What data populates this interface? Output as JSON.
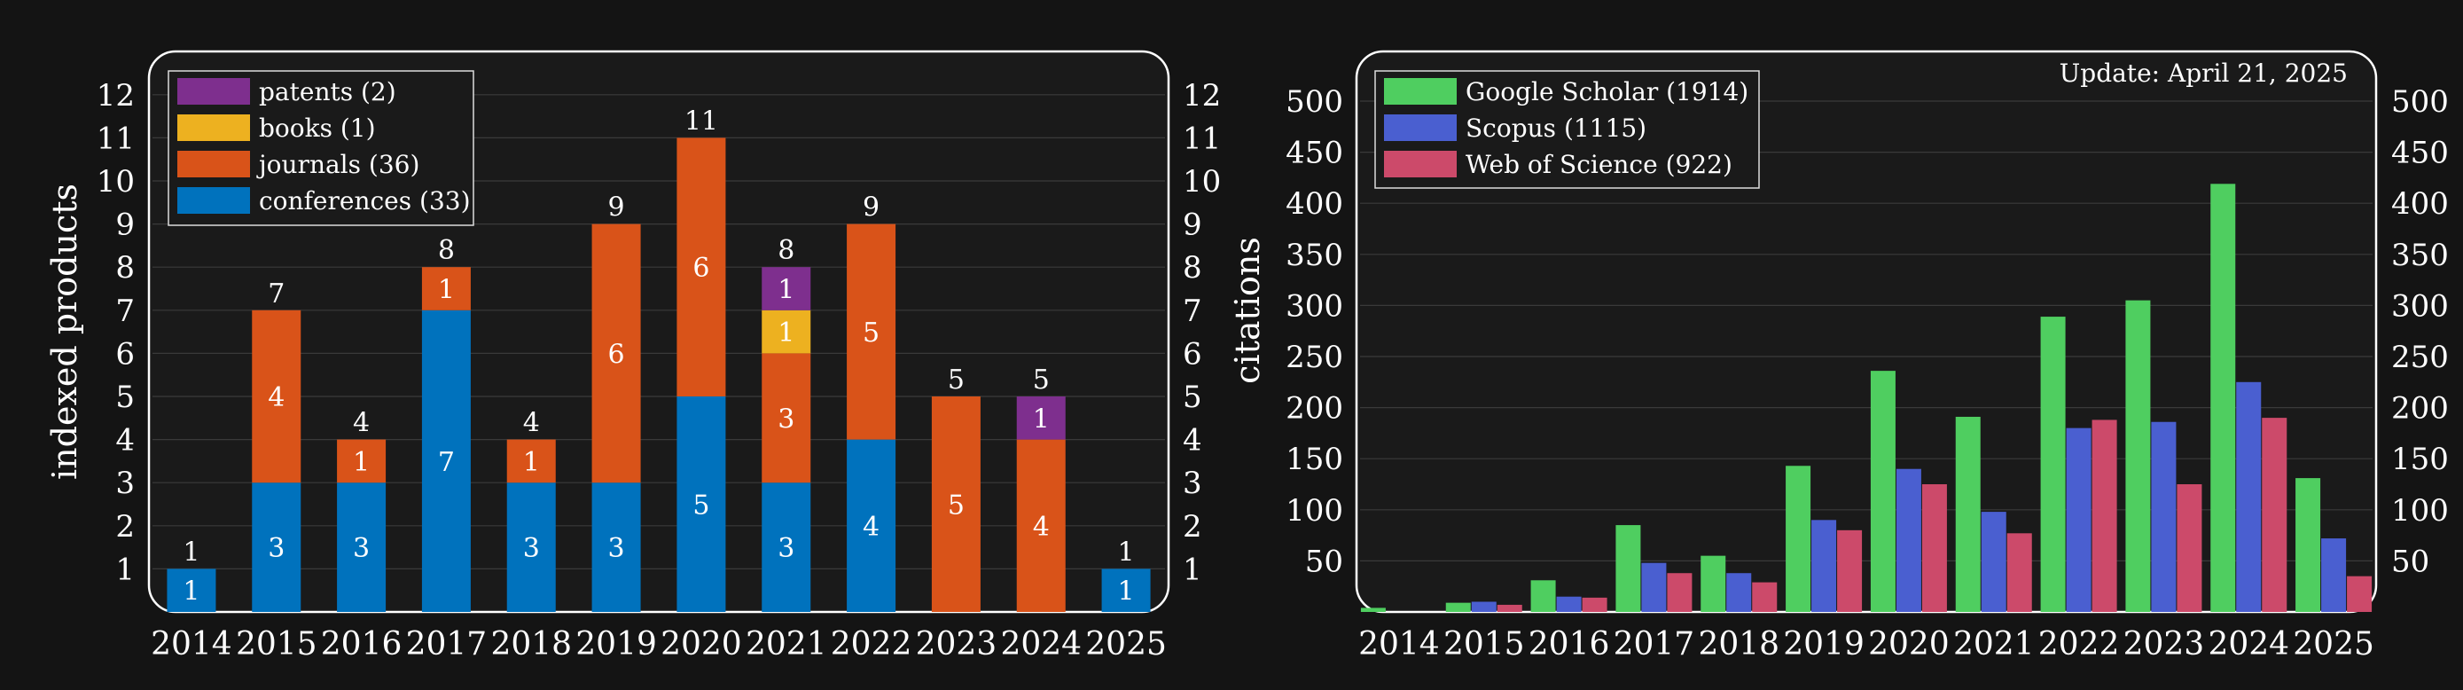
{
  "background_color": "#141414",
  "panel_color": "#1a1a1a",
  "grid_color": "#3a3a3a",
  "frame_color": "#ffffff",
  "chart_data": [
    {
      "type": "bar",
      "stacked": true,
      "ylabel": "indexed products",
      "xlabel": "",
      "title": "",
      "ylim": [
        0,
        13
      ],
      "yticks": [
        1,
        2,
        3,
        4,
        5,
        6,
        7,
        8,
        9,
        10,
        11,
        12
      ],
      "grid": true,
      "legend_position": "top-left",
      "categories": [
        "2014",
        "2015",
        "2016",
        "2017",
        "2018",
        "2019",
        "2020",
        "2021",
        "2022",
        "2023",
        "2024",
        "2025"
      ],
      "series": [
        {
          "name": "conferences (33)",
          "color": "#0072bd",
          "values": [
            1,
            3,
            3,
            7,
            3,
            3,
            5,
            3,
            4,
            0,
            0,
            1
          ]
        },
        {
          "name": "journals (36)",
          "color": "#d95319",
          "values": [
            0,
            4,
            1,
            1,
            1,
            6,
            6,
            3,
            5,
            5,
            4,
            0
          ]
        },
        {
          "name": "books (1)",
          "color": "#edb120",
          "values": [
            0,
            0,
            0,
            0,
            0,
            0,
            0,
            1,
            0,
            0,
            0,
            0
          ]
        },
        {
          "name": "patents (2)",
          "color": "#7e2f8e",
          "values": [
            0,
            0,
            0,
            0,
            0,
            0,
            0,
            1,
            0,
            0,
            1,
            0
          ]
        }
      ],
      "legend_order": [
        "patents (2)",
        "books (1)",
        "journals (36)",
        "conferences (33)"
      ],
      "totals": [
        1,
        7,
        4,
        8,
        4,
        9,
        11,
        8,
        9,
        5,
        5,
        1
      ]
    },
    {
      "type": "bar",
      "stacked": false,
      "ylabel": "citations",
      "xlabel": "",
      "title": "",
      "annotation": "Update: April 21, 2025",
      "ylim": [
        0,
        540
      ],
      "yticks": [
        50,
        100,
        150,
        200,
        250,
        300,
        350,
        400,
        450,
        500
      ],
      "grid": true,
      "legend_position": "top-left",
      "categories": [
        "2014",
        "2015",
        "2016",
        "2017",
        "2018",
        "2019",
        "2020",
        "2021",
        "2022",
        "2023",
        "2024",
        "2025"
      ],
      "series": [
        {
          "name": "Google Scholar (1914)",
          "color": "#4fce60",
          "values": [
            4,
            9,
            31,
            85,
            55,
            143,
            236,
            191,
            289,
            305,
            419,
            131
          ]
        },
        {
          "name": "Scopus (1115)",
          "color": "#4a5fd0",
          "values": [
            0,
            10,
            15,
            48,
            38,
            90,
            140,
            98,
            180,
            186,
            225,
            72
          ]
        },
        {
          "name": "Web of Science (922)",
          "color": "#cc4a6a",
          "values": [
            0,
            7,
            14,
            38,
            29,
            80,
            125,
            77,
            188,
            125,
            190,
            35
          ]
        }
      ]
    }
  ]
}
